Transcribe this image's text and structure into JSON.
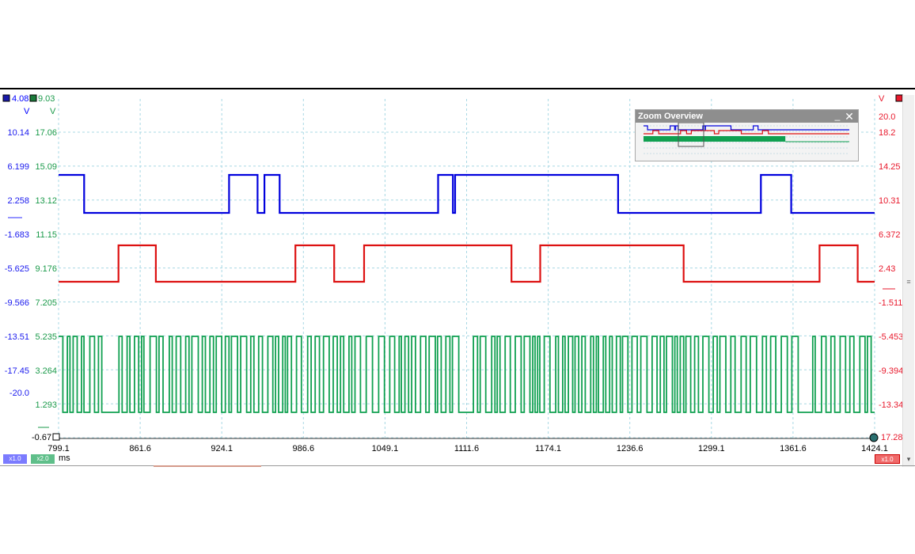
{
  "chart_data": {
    "type": "line",
    "x_axis": {
      "unit": "ms",
      "range": [
        799.1,
        1424.1
      ],
      "ticks": [
        "799.1",
        "861.6",
        "924.1",
        "986.6",
        "1049.1",
        "1111.6",
        "1174.1",
        "1236.6",
        "1299.1",
        "1361.6",
        "1424.1"
      ]
    },
    "axes": {
      "blue": {
        "top_value": "4.08",
        "unit": "V",
        "ticks": [
          "10.14",
          "6.199",
          "2.258",
          "-1.683",
          "-5.625",
          "-9.566",
          "-13.51",
          "-17.45",
          "-20.0"
        ],
        "bottom_value": "-0.67",
        "color": "#2b2bff",
        "scale_badge": "x1.0"
      },
      "green": {
        "top_value": "9.03",
        "unit": "V",
        "ticks": [
          "17.06",
          "15.09",
          "13.12",
          "11.15",
          "9.176",
          "7.205",
          "5.235",
          "3.264",
          "1.293"
        ],
        "color": "#1a9a4a",
        "scale_badge": "x2.0"
      },
      "red": {
        "unit": "V",
        "ticks": [
          "20.0",
          "18.2",
          "14.25",
          "10.31",
          "6.372",
          "2.43",
          "-1.511",
          "-5.453",
          "-9.394",
          "-13.34"
        ],
        "bottom_value": "17.28",
        "color": "#e8192c",
        "scale_badge": "x1.0"
      }
    },
    "series": [
      {
        "color": "#0000dd",
        "levels": {
          "high": 5.0,
          "low": 0.2
        },
        "edges_ms": [
          818.7,
          929.7,
          951.5,
          956.8,
          968.4,
          1089.8,
          1101.1,
          1102.8,
          1227.6,
          1337.0,
          1360.2
        ],
        "initial_state": "high"
      },
      {
        "color": "#dd1111",
        "levels": {
          "high": 5.0,
          "low": 0.2
        },
        "edges_ms": [
          845.0,
          873.6,
          980.5,
          1010.2,
          1033.1,
          1146.0,
          1168.0,
          1277.8,
          1381.9,
          1411.1
        ],
        "initial_state": "low"
      },
      {
        "color": "#10a050",
        "levels": {
          "high": 5.0,
          "low": 0.2
        },
        "pattern": "serial data bursts",
        "gaps_ms": [
          [
            831.9,
            840.8
          ],
          [
            1101.4,
            1110.2
          ],
          [
            1363.6,
            1372.4
          ]
        ]
      }
    ]
  },
  "zoom_overview": {
    "title": "Zoom Overview",
    "minimize_glyph": "_",
    "close_glyph": "✕"
  },
  "footer": {
    "time_unit": "ms",
    "badge_blue": "x1.0",
    "badge_green": "x2.0",
    "badge_red": "x1.0"
  }
}
